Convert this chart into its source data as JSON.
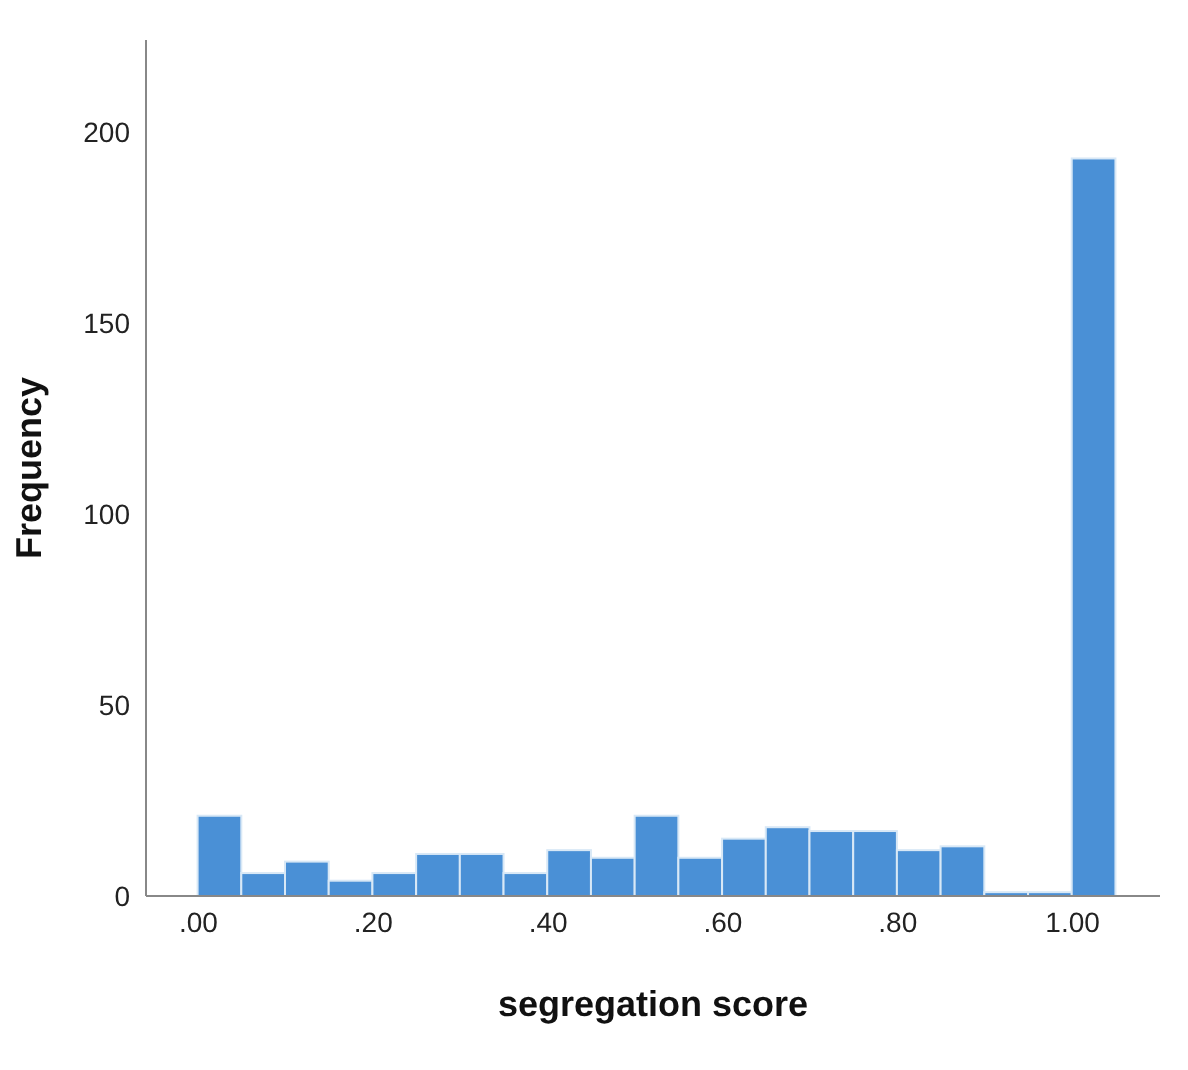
{
  "chart_data": {
    "type": "histogram",
    "xlabel": "segregation score",
    "ylabel": "Frequency",
    "bins": [
      0,
      0.05,
      0.1,
      0.15,
      0.2,
      0.25,
      0.3,
      0.35,
      0.4,
      0.45,
      0.5,
      0.55,
      0.6,
      0.65,
      0.7,
      0.75,
      0.8,
      0.85,
      0.9,
      0.95,
      1.0,
      1.05
    ],
    "values": [
      21,
      6,
      9,
      4,
      6,
      11,
      11,
      6,
      12,
      10,
      21,
      10,
      15,
      18,
      17,
      17,
      12,
      13,
      1,
      1,
      193
    ],
    "color": "#4a90d6",
    "xlim": [
      -0.06,
      1.1
    ],
    "xticks": [
      {
        "value": 0,
        "label": ".00"
      },
      {
        "value": 0.2,
        "label": ".20"
      },
      {
        "value": 0.4,
        "label": ".40"
      },
      {
        "value": 0.6,
        "label": ".60"
      },
      {
        "value": 0.8,
        "label": ".80"
      },
      {
        "value": 1.0,
        "label": "1.00"
      }
    ],
    "ylim": [
      0,
      224
    ],
    "yticks": [
      0,
      50,
      100,
      150,
      200
    ]
  }
}
